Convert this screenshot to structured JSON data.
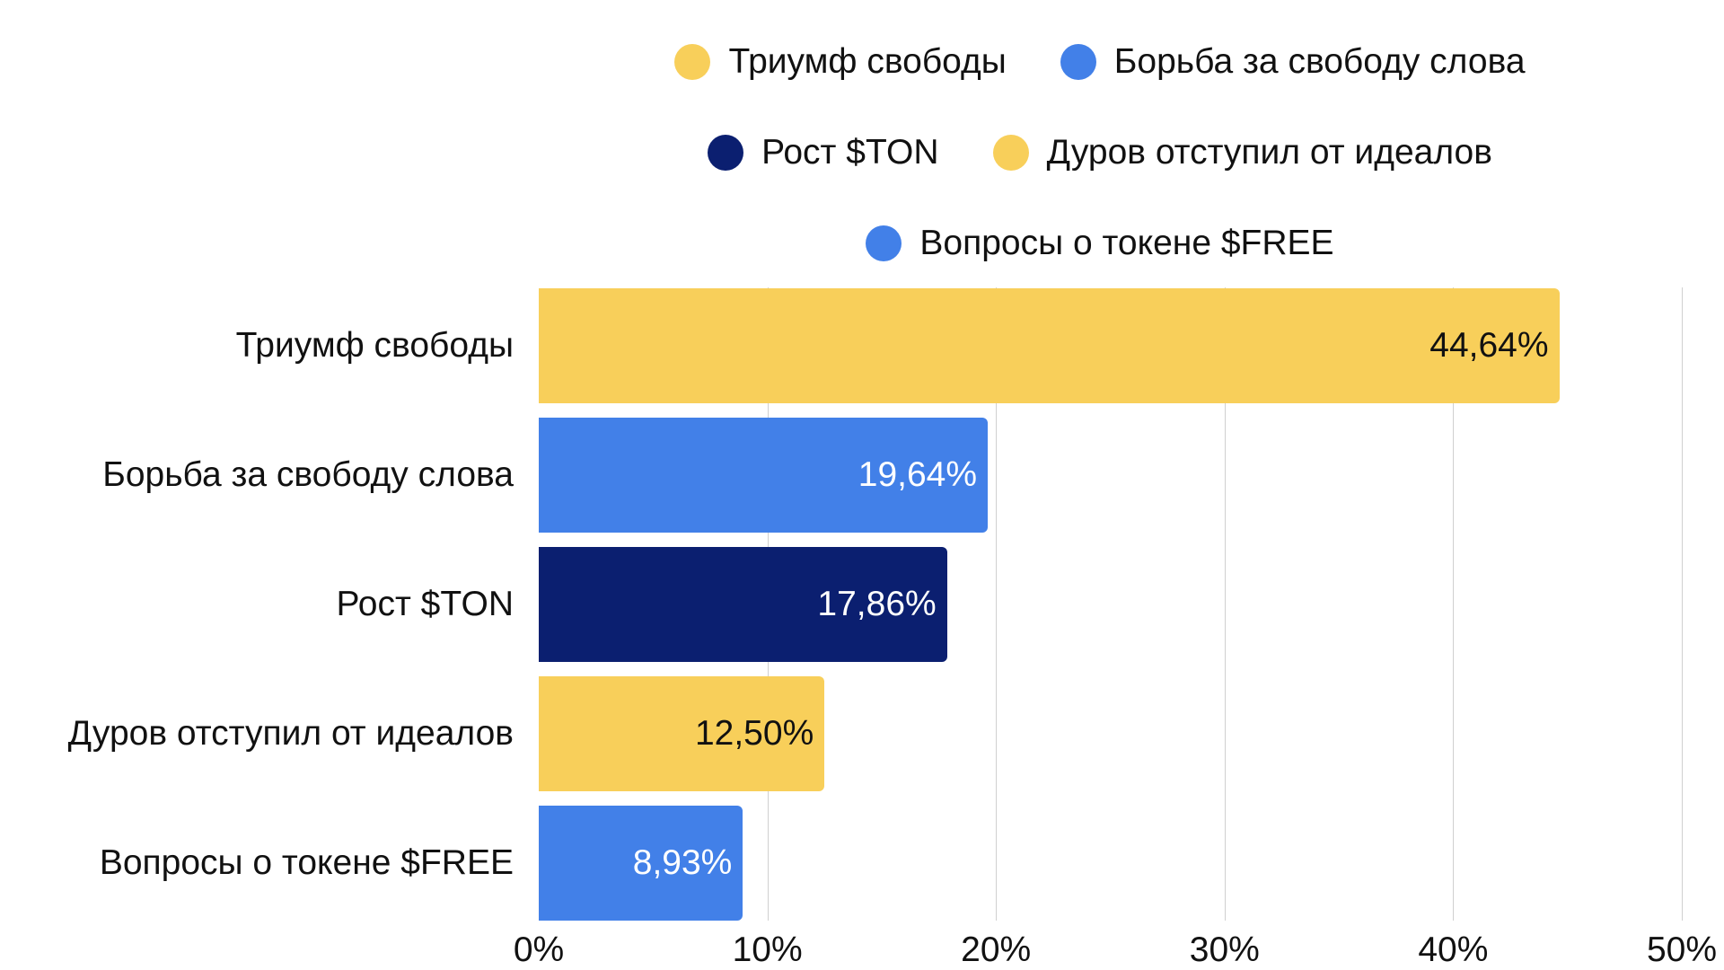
{
  "chart_data": {
    "type": "bar",
    "orientation": "horizontal",
    "categories": [
      "Триумф свободы",
      "Борьба за свободу слова",
      "Рост $TON",
      "Дуров отступил от идеалов",
      "Вопросы о токене $FREE"
    ],
    "values": [
      44.64,
      19.64,
      17.86,
      12.5,
      8.93
    ],
    "value_labels": [
      "44,64%",
      "19,64%",
      "17,86%",
      "12,50%",
      "8,93%"
    ],
    "colors": [
      "#F8CF5A",
      "#4280E8",
      "#0B1F70",
      "#F8CF5A",
      "#4280E8"
    ],
    "label_colors": [
      "#111111",
      "#ffffff",
      "#ffffff",
      "#111111",
      "#ffffff"
    ],
    "xlim": [
      0,
      50
    ],
    "xticks": [
      "0%",
      "10%",
      "20%",
      "30%",
      "40%",
      "50%"
    ],
    "grid": true,
    "legend_placement": "top",
    "legend": [
      [
        {
          "label": "Триумф свободы",
          "color": "#F8CF5A"
        },
        {
          "label": "Борьба за свободу слова",
          "color": "#4280E8"
        }
      ],
      [
        {
          "label": "Рост $TON",
          "color": "#0B1F70"
        },
        {
          "label": "Дуров отступил от идеалов",
          "color": "#F8CF5A"
        }
      ],
      [
        {
          "label": "Вопросы о токене $FREE",
          "color": "#4280E8"
        }
      ]
    ]
  }
}
